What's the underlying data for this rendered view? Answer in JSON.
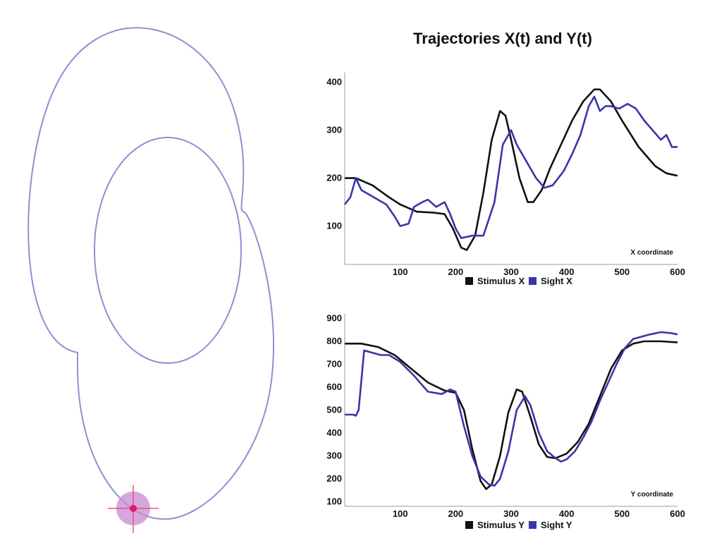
{
  "header": {
    "title": "Trajectories X(t) and Y(t)"
  },
  "colors": {
    "stimulus": "#111111",
    "sight": "#3a35a8",
    "path": "#8f8fd4",
    "marker_halo": "#c58bd0",
    "marker_dot": "#e0186a",
    "crosshair": "#f0507a",
    "axis": "#9a9a9a"
  },
  "chart_data": [
    {
      "type": "line",
      "title": "",
      "xlabel": "X coordinate",
      "ylabel": "",
      "xlim": [
        0,
        600
      ],
      "ylim": [
        20,
        420
      ],
      "xticks": [
        100,
        200,
        300,
        400,
        500,
        600
      ],
      "yticks": [
        100,
        200,
        300,
        400
      ],
      "legend": "bottom-center",
      "series": [
        {
          "name": "Stimulus X",
          "color": "#111111",
          "x": [
            0,
            20,
            50,
            80,
            100,
            130,
            160,
            180,
            195,
            210,
            220,
            235,
            250,
            265,
            280,
            290,
            300,
            315,
            330,
            340,
            355,
            370,
            390,
            410,
            430,
            450,
            460,
            480,
            500,
            530,
            560,
            580,
            600
          ],
          "y": [
            200,
            200,
            185,
            160,
            145,
            130,
            128,
            125,
            95,
            55,
            50,
            80,
            170,
            280,
            340,
            330,
            280,
            200,
            150,
            150,
            175,
            220,
            270,
            320,
            360,
            385,
            385,
            360,
            320,
            265,
            225,
            210,
            205
          ]
        },
        {
          "name": "Sight X",
          "color": "#3a35a8",
          "x": [
            0,
            10,
            20,
            30,
            45,
            60,
            75,
            90,
            100,
            115,
            125,
            140,
            150,
            165,
            180,
            190,
            200,
            210,
            230,
            250,
            270,
            285,
            300,
            310,
            320,
            330,
            345,
            360,
            375,
            395,
            410,
            425,
            440,
            450,
            460,
            470,
            480,
            495,
            510,
            525,
            540,
            555,
            570,
            580,
            590,
            600
          ],
          "y": [
            145,
            160,
            200,
            175,
            165,
            155,
            145,
            120,
            100,
            105,
            140,
            150,
            155,
            140,
            150,
            125,
            95,
            75,
            80,
            80,
            150,
            270,
            300,
            270,
            250,
            230,
            200,
            180,
            185,
            215,
            250,
            290,
            350,
            370,
            340,
            350,
            350,
            345,
            355,
            345,
            320,
            300,
            280,
            290,
            265,
            265
          ]
        }
      ]
    },
    {
      "type": "line",
      "title": "",
      "xlabel": "Y coordinate",
      "ylabel": "",
      "xlim": [
        0,
        600
      ],
      "ylim": [
        80,
        920
      ],
      "xticks": [
        100,
        200,
        300,
        400,
        500,
        600
      ],
      "yticks": [
        100,
        200,
        300,
        400,
        500,
        600,
        700,
        800,
        900
      ],
      "legend": "bottom-center",
      "series": [
        {
          "name": "Stimulus Y",
          "color": "#111111",
          "x": [
            0,
            30,
            60,
            90,
            120,
            150,
            180,
            200,
            215,
            230,
            245,
            255,
            265,
            280,
            295,
            310,
            320,
            335,
            350,
            365,
            380,
            400,
            420,
            440,
            460,
            480,
            500,
            520,
            540,
            570,
            600
          ],
          "y": [
            790,
            790,
            775,
            740,
            680,
            620,
            585,
            575,
            500,
            330,
            190,
            155,
            175,
            300,
            490,
            590,
            580,
            470,
            350,
            295,
            290,
            310,
            360,
            440,
            560,
            680,
            760,
            790,
            800,
            800,
            795
          ]
        },
        {
          "name": "Sight Y",
          "color": "#3a35a8",
          "x": [
            0,
            15,
            20,
            25,
            35,
            50,
            65,
            80,
            100,
            125,
            150,
            175,
            190,
            200,
            215,
            230,
            245,
            260,
            270,
            280,
            295,
            310,
            325,
            335,
            350,
            365,
            380,
            390,
            400,
            415,
            430,
            445,
            460,
            475,
            490,
            505,
            520,
            535,
            550,
            570,
            590,
            600
          ],
          "y": [
            480,
            480,
            475,
            500,
            760,
            750,
            740,
            740,
            710,
            650,
            580,
            570,
            590,
            580,
            430,
            300,
            210,
            175,
            170,
            200,
            320,
            500,
            560,
            520,
            400,
            320,
            290,
            275,
            285,
            320,
            380,
            450,
            540,
            620,
            700,
            770,
            810,
            820,
            830,
            840,
            835,
            830
          ]
        }
      ]
    }
  ]
}
